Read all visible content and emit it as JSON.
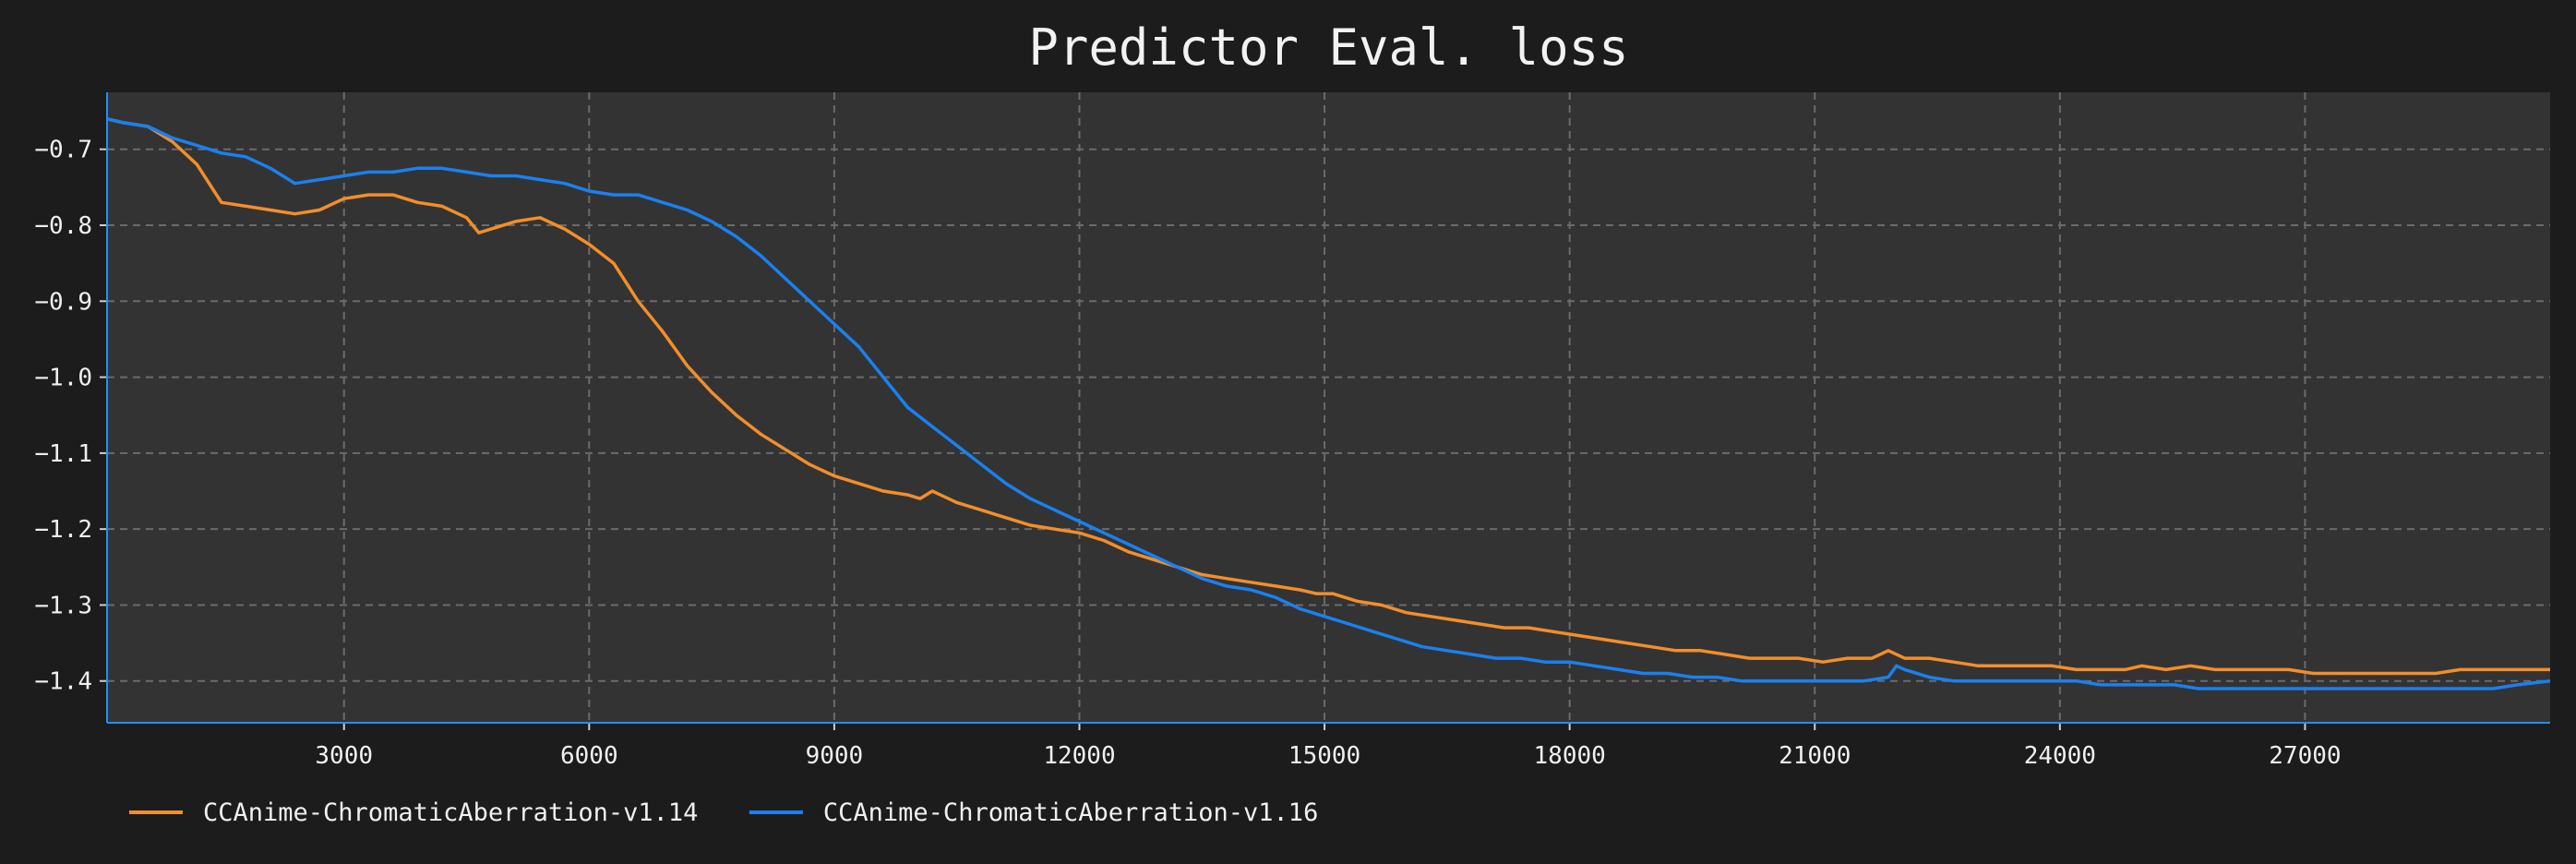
{
  "chart_data": {
    "type": "line",
    "title": "Predictor Eval. loss",
    "xlabel": "",
    "ylabel": "",
    "xlim": [
      100,
      30000
    ],
    "ylim": [
      -1.455,
      -0.625
    ],
    "x_ticks": [
      3000,
      6000,
      9000,
      12000,
      15000,
      18000,
      21000,
      24000,
      27000
    ],
    "y_ticks": [
      -0.7,
      -0.8,
      -0.9,
      -1.0,
      -1.1,
      -1.2,
      -1.3,
      -1.4
    ],
    "grid": true,
    "legend_position": "bottom-left",
    "background_color": "#1c1c1c",
    "plot_background_color": "#333333",
    "axis_color": "#1f8fff",
    "series": [
      {
        "name": "CCAnime-ChromaticAberration-v1.14",
        "color": "#f28e2b",
        "x": [
          100,
          300,
          600,
          900,
          1200,
          1500,
          1800,
          2100,
          2400,
          2700,
          3000,
          3300,
          3600,
          3900,
          4200,
          4500,
          4650,
          4800,
          5100,
          5400,
          5700,
          6000,
          6300,
          6600,
          6900,
          7200,
          7500,
          7800,
          8100,
          8400,
          8700,
          9000,
          9300,
          9600,
          9900,
          10050,
          10200,
          10500,
          10800,
          11100,
          11400,
          11700,
          12000,
          12300,
          12600,
          12900,
          13200,
          13500,
          13800,
          14100,
          14400,
          14700,
          14900,
          15100,
          15400,
          15700,
          16000,
          16300,
          16600,
          16900,
          17200,
          17500,
          17800,
          18100,
          18400,
          18700,
          19000,
          19300,
          19600,
          19900,
          20200,
          20500,
          20800,
          21100,
          21400,
          21700,
          21900,
          22100,
          22400,
          22700,
          23000,
          23300,
          23600,
          23900,
          24200,
          24500,
          24800,
          25000,
          25300,
          25600,
          25900,
          26200,
          26500,
          26800,
          27100,
          27400,
          27700,
          28000,
          28300,
          28600,
          28900,
          29200,
          29500,
          29800,
          30000
        ],
        "y": [
          -0.66,
          -0.665,
          -0.67,
          -0.69,
          -0.72,
          -0.77,
          -0.775,
          -0.78,
          -0.785,
          -0.78,
          -0.765,
          -0.76,
          -0.76,
          -0.77,
          -0.775,
          -0.79,
          -0.81,
          -0.805,
          -0.795,
          -0.79,
          -0.805,
          -0.825,
          -0.85,
          -0.9,
          -0.94,
          -0.985,
          -1.02,
          -1.05,
          -1.075,
          -1.095,
          -1.115,
          -1.13,
          -1.14,
          -1.15,
          -1.155,
          -1.16,
          -1.15,
          -1.165,
          -1.175,
          -1.185,
          -1.195,
          -1.2,
          -1.205,
          -1.215,
          -1.23,
          -1.24,
          -1.25,
          -1.26,
          -1.265,
          -1.27,
          -1.275,
          -1.28,
          -1.285,
          -1.285,
          -1.295,
          -1.3,
          -1.31,
          -1.315,
          -1.32,
          -1.325,
          -1.33,
          -1.33,
          -1.335,
          -1.34,
          -1.345,
          -1.35,
          -1.355,
          -1.36,
          -1.36,
          -1.365,
          -1.37,
          -1.37,
          -1.37,
          -1.375,
          -1.37,
          -1.37,
          -1.36,
          -1.37,
          -1.37,
          -1.375,
          -1.38,
          -1.38,
          -1.38,
          -1.38,
          -1.385,
          -1.385,
          -1.385,
          -1.38,
          -1.385,
          -1.38,
          -1.385,
          -1.385,
          -1.385,
          -1.385,
          -1.39,
          -1.39,
          -1.39,
          -1.39,
          -1.39,
          -1.39,
          -1.385,
          -1.385,
          -1.385,
          -1.385,
          -1.385
        ]
      },
      {
        "name": "CCAnime-ChromaticAberration-v1.16",
        "color": "#1a80f0",
        "x": [
          100,
          300,
          600,
          900,
          1200,
          1500,
          1800,
          2100,
          2400,
          2700,
          3000,
          3300,
          3600,
          3900,
          4200,
          4500,
          4800,
          5100,
          5400,
          5700,
          6000,
          6300,
          6600,
          6900,
          7200,
          7500,
          7800,
          8100,
          8400,
          8700,
          9000,
          9300,
          9600,
          9900,
          10200,
          10500,
          10800,
          11100,
          11400,
          11700,
          12000,
          12300,
          12600,
          12900,
          13200,
          13500,
          13800,
          14100,
          14400,
          14700,
          15000,
          15300,
          15600,
          15900,
          16200,
          16500,
          16800,
          17100,
          17400,
          17700,
          18000,
          18300,
          18600,
          18900,
          19200,
          19500,
          19800,
          20100,
          20400,
          20700,
          21000,
          21300,
          21600,
          21900,
          22000,
          22100,
          22400,
          22700,
          23000,
          23300,
          23600,
          23900,
          24200,
          24500,
          24800,
          25100,
          25400,
          25700,
          26000,
          26300,
          26600,
          26900,
          27200,
          27500,
          27800,
          28100,
          28400,
          28700,
          29000,
          29300,
          29600,
          30000
        ],
        "y": [
          -0.66,
          -0.665,
          -0.67,
          -0.685,
          -0.695,
          -0.705,
          -0.71,
          -0.725,
          -0.745,
          -0.74,
          -0.735,
          -0.73,
          -0.73,
          -0.725,
          -0.725,
          -0.73,
          -0.735,
          -0.735,
          -0.74,
          -0.745,
          -0.755,
          -0.76,
          -0.76,
          -0.77,
          -0.78,
          -0.795,
          -0.815,
          -0.84,
          -0.87,
          -0.9,
          -0.93,
          -0.96,
          -1.0,
          -1.04,
          -1.065,
          -1.09,
          -1.115,
          -1.14,
          -1.16,
          -1.175,
          -1.19,
          -1.205,
          -1.22,
          -1.235,
          -1.25,
          -1.265,
          -1.275,
          -1.28,
          -1.29,
          -1.305,
          -1.315,
          -1.325,
          -1.335,
          -1.345,
          -1.355,
          -1.36,
          -1.365,
          -1.37,
          -1.37,
          -1.375,
          -1.375,
          -1.38,
          -1.385,
          -1.39,
          -1.39,
          -1.395,
          -1.395,
          -1.4,
          -1.4,
          -1.4,
          -1.4,
          -1.4,
          -1.4,
          -1.395,
          -1.38,
          -1.385,
          -1.395,
          -1.4,
          -1.4,
          -1.4,
          -1.4,
          -1.4,
          -1.4,
          -1.405,
          -1.405,
          -1.405,
          -1.405,
          -1.41,
          -1.41,
          -1.41,
          -1.41,
          -1.41,
          -1.41,
          -1.41,
          -1.41,
          -1.41,
          -1.41,
          -1.41,
          -1.41,
          -1.41,
          -1.405,
          -1.4
        ]
      }
    ]
  }
}
